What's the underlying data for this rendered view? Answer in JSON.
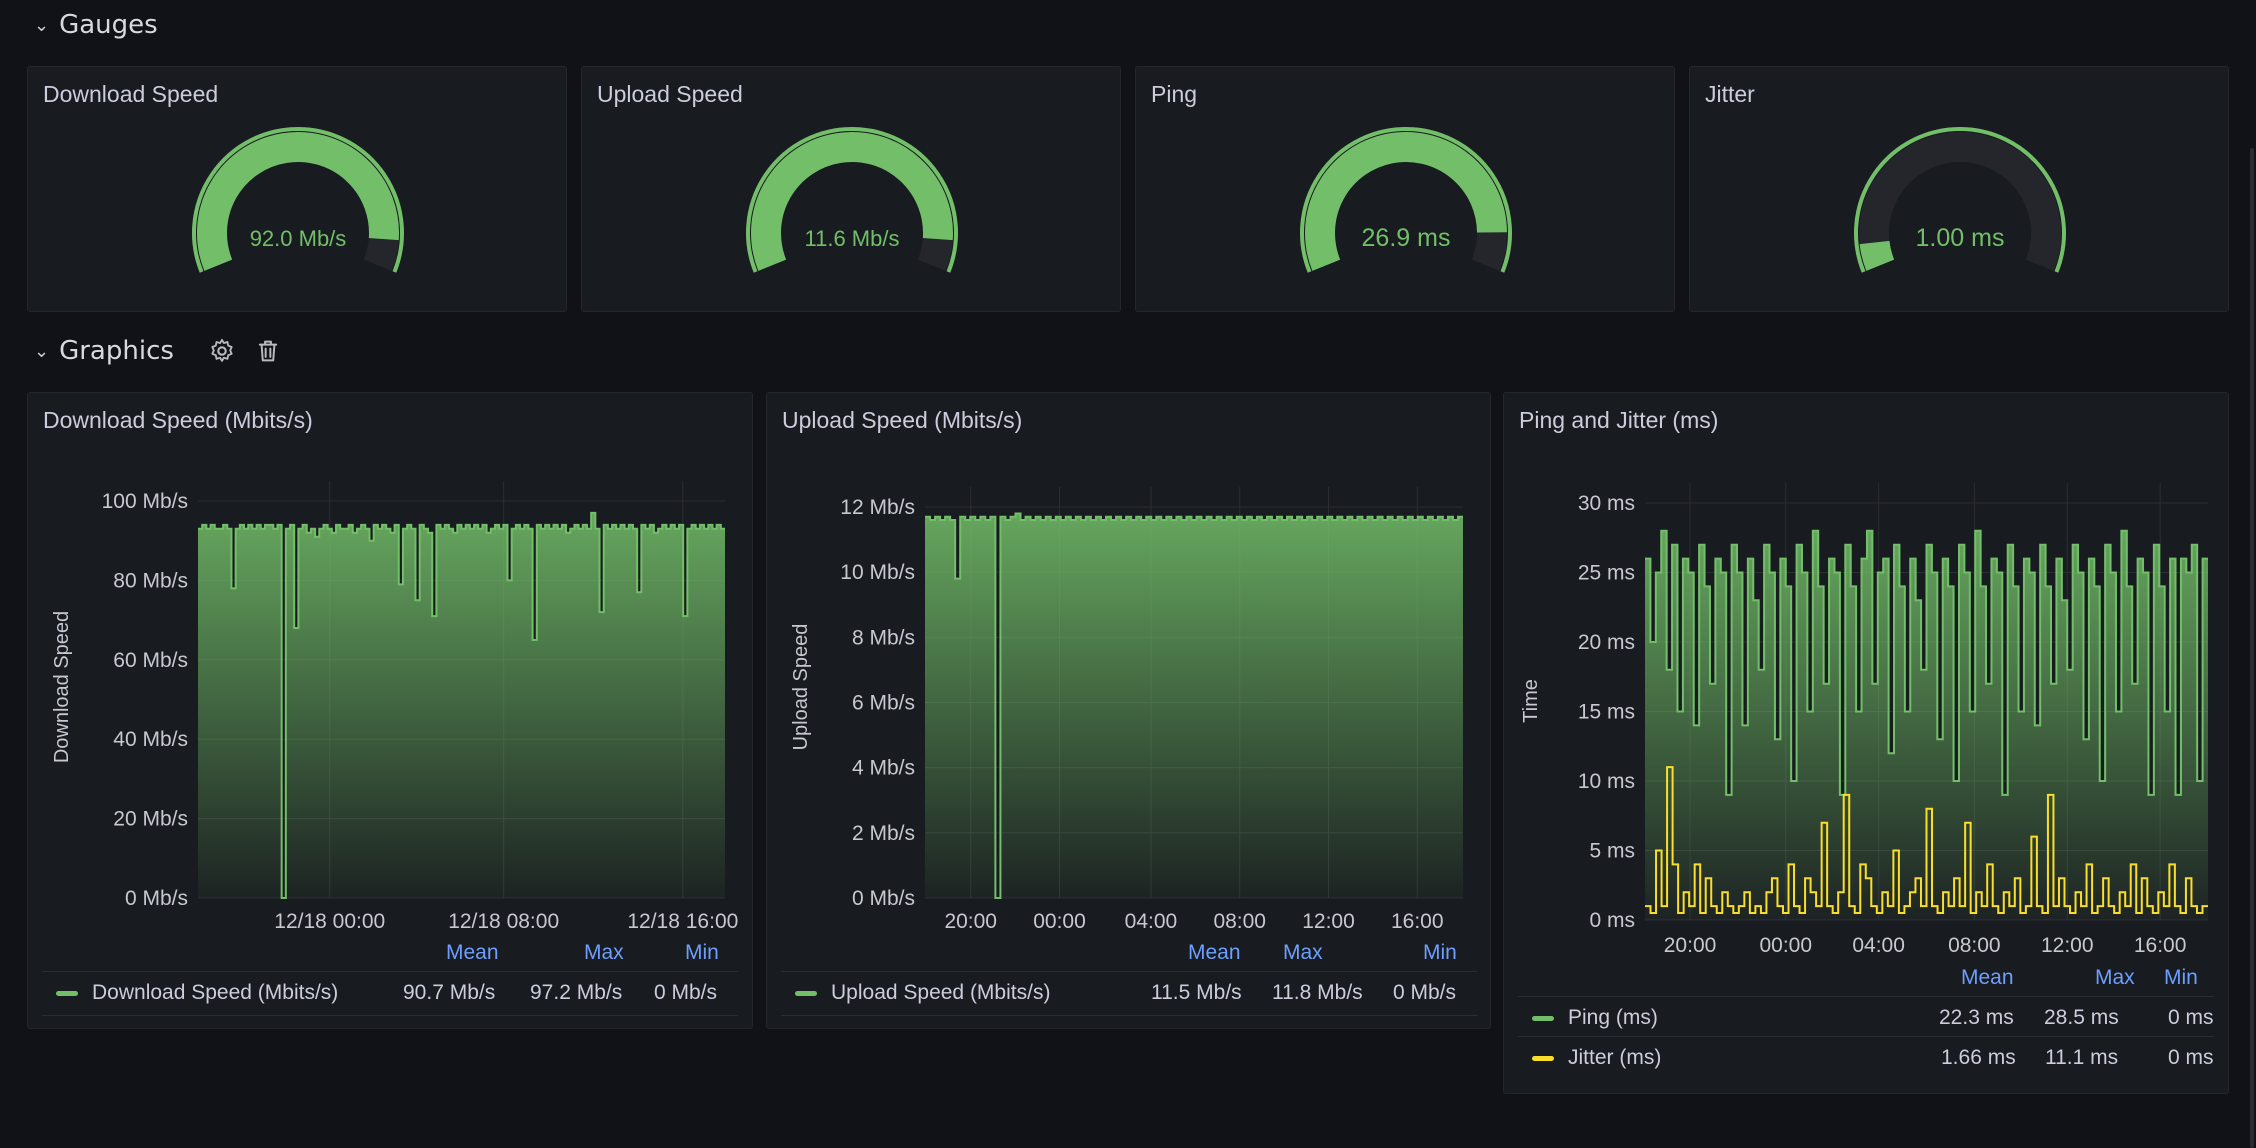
{
  "rows": {
    "gauges": {
      "title": "Gauges"
    },
    "graphics": {
      "title": "Graphics"
    }
  },
  "gauges": [
    {
      "title": "Download Speed",
      "value_text": "92.0 Mb/s",
      "fraction": 0.92,
      "color": "#73bf69"
    },
    {
      "title": "Upload Speed",
      "value_text": "11.6 Mb/s",
      "fraction": 0.92,
      "color": "#73bf69"
    },
    {
      "title": "Ping",
      "value_text": "26.9 ms",
      "fraction": 0.9,
      "color": "#73bf69"
    },
    {
      "title": "Jitter",
      "value_text": "1.00 ms",
      "fraction": 0.07,
      "color": "#73bf69"
    }
  ],
  "panels": {
    "download": {
      "title": "Download Speed (Mbits/s)",
      "ylabel": "Download Speed",
      "legend_headers": [
        "Mean",
        "Max",
        "Min"
      ],
      "legend": [
        {
          "name": "Download Speed (Mbits/s)",
          "mean": "90.7 Mb/s",
          "max": "97.2 Mb/s",
          "min": "0 Mb/s",
          "color": "#73bf69"
        }
      ]
    },
    "upload": {
      "title": "Upload Speed (Mbits/s)",
      "ylabel": "Upload Speed",
      "legend_headers": [
        "Mean",
        "Max",
        "Min"
      ],
      "legend": [
        {
          "name": "Upload Speed (Mbits/s)",
          "mean": "11.5 Mb/s",
          "max": "11.8 Mb/s",
          "min": "0 Mb/s",
          "color": "#73bf69"
        }
      ]
    },
    "ping": {
      "title": "Ping and Jitter (ms)",
      "ylabel": "Time",
      "legend_headers": [
        "Mean",
        "Max",
        "Min"
      ],
      "legend": [
        {
          "name": "Ping (ms)",
          "mean": "22.3 ms",
          "max": "28.5 ms",
          "min": "0 ms",
          "color": "#73bf69"
        },
        {
          "name": "Jitter (ms)",
          "mean": "1.66 ms",
          "max": "11.1 ms",
          "min": "0 ms",
          "color": "#fade2a"
        }
      ]
    }
  },
  "chart_data": [
    {
      "type": "area",
      "title": "Download Speed (Mbits/s)",
      "ylabel": "Download Speed",
      "ylim": [
        0,
        100
      ],
      "yticks": [
        "0 Mb/s",
        "20 Mb/s",
        "40 Mb/s",
        "60 Mb/s",
        "80 Mb/s",
        "100 Mb/s"
      ],
      "xticks": [
        "12/18 00:00",
        "12/18 08:00",
        "12/18 16:00"
      ],
      "series": [
        {
          "name": "Download Speed (Mbits/s)",
          "values": [
            93,
            94,
            93,
            94,
            93,
            93,
            94,
            93,
            78,
            93,
            94,
            93,
            94,
            93,
            94,
            93,
            94,
            94,
            93,
            94,
            0,
            93,
            94,
            68,
            93,
            94,
            92,
            93,
            91,
            93,
            94,
            93,
            92,
            94,
            93,
            93,
            94,
            92,
            93,
            94,
            93,
            90,
            94,
            93,
            94,
            93,
            92,
            94,
            79,
            93,
            94,
            93,
            75,
            94,
            93,
            92,
            71,
            94,
            93,
            94,
            93,
            92,
            94,
            93,
            94,
            93,
            94,
            93,
            94,
            92,
            93,
            94,
            93,
            94,
            80,
            93,
            94,
            93,
            94,
            93,
            65,
            94,
            93,
            94,
            93,
            94,
            93,
            94,
            92,
            93,
            94,
            93,
            94,
            93,
            97,
            93,
            72,
            94,
            93,
            94,
            93,
            94,
            93,
            94,
            93,
            77,
            94,
            93,
            94,
            92,
            93,
            94,
            93,
            94,
            93,
            94,
            71,
            93,
            94,
            93,
            94,
            93,
            94,
            93,
            94,
            93
          ]
        }
      ],
      "grid": true
    },
    {
      "type": "area",
      "title": "Upload Speed (Mbits/s)",
      "ylabel": "Upload Speed",
      "ylim": [
        0,
        12
      ],
      "yticks": [
        "0 Mb/s",
        "2 Mb/s",
        "4 Mb/s",
        "6 Mb/s",
        "8 Mb/s",
        "10 Mb/s",
        "12 Mb/s"
      ],
      "xticks": [
        "20:00",
        "00:00",
        "04:00",
        "08:00",
        "12:00",
        "16:00"
      ],
      "series": [
        {
          "name": "Upload Speed (Mbits/s)",
          "values": [
            11.7,
            11.6,
            11.7,
            11.6,
            11.7,
            11.6,
            9.8,
            11.7,
            11.6,
            11.7,
            11.6,
            11.7,
            11.6,
            11.7,
            0,
            11.7,
            11.6,
            11.7,
            11.8,
            11.6,
            11.7,
            11.6,
            11.7,
            11.6,
            11.7,
            11.6,
            11.7,
            11.6,
            11.7,
            11.6,
            11.7,
            11.6,
            11.7,
            11.6,
            11.7,
            11.6,
            11.7,
            11.6,
            11.7,
            11.6,
            11.7,
            11.6,
            11.7,
            11.6,
            11.7,
            11.6,
            11.7,
            11.6,
            11.7,
            11.6,
            11.7,
            11.6,
            11.7,
            11.6,
            11.7,
            11.6,
            11.7,
            11.6,
            11.7,
            11.6,
            11.7,
            11.6,
            11.7,
            11.6,
            11.7,
            11.6,
            11.7,
            11.6,
            11.7,
            11.6,
            11.7,
            11.6,
            11.7,
            11.6,
            11.7,
            11.6,
            11.7,
            11.6,
            11.7,
            11.6,
            11.7,
            11.6,
            11.7,
            11.6,
            11.7,
            11.6,
            11.7,
            11.6,
            11.7,
            11.6,
            11.7,
            11.6,
            11.7,
            11.6,
            11.7,
            11.6,
            11.7,
            11.6,
            11.7,
            11.6,
            11.7,
            11.6,
            11.7,
            11.6,
            11.7,
            11.6,
            11.7
          ]
        }
      ],
      "grid": true
    },
    {
      "type": "area",
      "title": "Ping and Jitter (ms)",
      "ylabel": "Time",
      "ylim": [
        0,
        30
      ],
      "yticks": [
        "0 ms",
        "5 ms",
        "10 ms",
        "15 ms",
        "20 ms",
        "25 ms",
        "30 ms"
      ],
      "xticks": [
        "20:00",
        "00:00",
        "04:00",
        "08:00",
        "12:00",
        "16:00"
      ],
      "series": [
        {
          "name": "Ping (ms)",
          "values": [
            26,
            20,
            25,
            28,
            18,
            27,
            15,
            26,
            25,
            14,
            27,
            24,
            17,
            26,
            25,
            9,
            27,
            25,
            14,
            26,
            23,
            18,
            27,
            25,
            13,
            26,
            24,
            10,
            27,
            25,
            15,
            28,
            24,
            17,
            26,
            25,
            9,
            27,
            24,
            15,
            26,
            28,
            17,
            25,
            26,
            12,
            27,
            24,
            15,
            26,
            23,
            18,
            27,
            25,
            13,
            26,
            24,
            10,
            27,
            25,
            15,
            28,
            24,
            17,
            26,
            25,
            9,
            27,
            24,
            15,
            26,
            25,
            14,
            27,
            24,
            17,
            26,
            23,
            18,
            27,
            25,
            13,
            26,
            24,
            10,
            27,
            25,
            15,
            28,
            24,
            17,
            26,
            25,
            9,
            27,
            24,
            15,
            26,
            9,
            26,
            25,
            27,
            10,
            26
          ]
        },
        {
          "name": "Jitter (ms)",
          "values": [
            1,
            0.5,
            5,
            1,
            11,
            4,
            0.5,
            2,
            1,
            4,
            0.5,
            3,
            1,
            0.5,
            2,
            1,
            0.5,
            1,
            2,
            0.5,
            1,
            0.5,
            2,
            3,
            1,
            0.5,
            4,
            1,
            0.5,
            3,
            2,
            1,
            7,
            1,
            0.5,
            2,
            9,
            1,
            0.5,
            4,
            3,
            1,
            0.5,
            2,
            1,
            5,
            0.5,
            1,
            2,
            3,
            1,
            8,
            1,
            0.5,
            2,
            1,
            3,
            1,
            7,
            0.5,
            2,
            1,
            4,
            1,
            0.5,
            2,
            1,
            3,
            0.5,
            1,
            6,
            1,
            0.5,
            9,
            1,
            3,
            1,
            0.5,
            2,
            1,
            4,
            0.5,
            1,
            3,
            1,
            0.5,
            2,
            1,
            4,
            0.5,
            3,
            1,
            0.5,
            2,
            1,
            4,
            1,
            0.5,
            3,
            1,
            0.5,
            1
          ]
        }
      ],
      "grid": true
    }
  ]
}
